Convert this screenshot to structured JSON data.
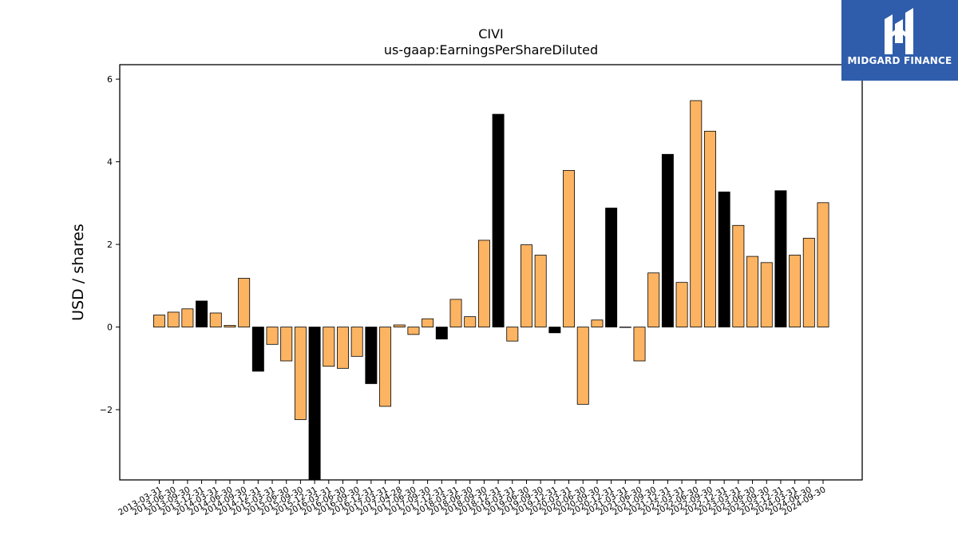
{
  "chart_data": {
    "type": "bar",
    "title": "CIVI",
    "subtitle": "us-gaap:EarningsPerShareDiluted",
    "xlabel": "",
    "ylabel": "USD / shares",
    "ylim": [
      -3.7,
      6.35
    ],
    "yticks": [
      -2,
      0,
      2,
      4,
      6
    ],
    "ytick_labels": [
      "−2",
      "0",
      "2",
      "4",
      "6"
    ],
    "grid": false,
    "legend": "none",
    "colors": {
      "default": "#fdb462",
      "annual": "#000000",
      "edge": "#000000"
    },
    "categories": [
      "2013-03-31",
      "2013-06-30",
      "2013-09-30",
      "2013-12-31",
      "2014-03-31",
      "2014-06-30",
      "2014-09-30",
      "2014-12-31",
      "2015-03-31",
      "2015-06-30",
      "2015-09-30",
      "2015-12-31",
      "2016-03-31",
      "2016-06-30",
      "2016-09-30",
      "2016-12-31",
      "2017-03-31",
      "2017-04-28",
      "2017-06-30",
      "2017-09-30",
      "2017-12-31",
      "2018-03-31",
      "2018-06-30",
      "2018-09-30",
      "2018-12-31",
      "2019-03-31",
      "2019-06-30",
      "2019-09-30",
      "2019-12-31",
      "2020-03-31",
      "2020-06-30",
      "2020-09-30",
      "2020-12-31",
      "2021-03-31",
      "2021-06-30",
      "2021-09-30",
      "2021-12-31",
      "2022-03-31",
      "2022-06-30",
      "2022-09-30",
      "2022-12-31",
      "2023-03-31",
      "2023-06-30",
      "2023-09-30",
      "2023-12-31",
      "2024-03-31",
      "2024-06-30",
      "2024-09-30"
    ],
    "values": [
      0.29,
      0.36,
      0.44,
      0.63,
      0.34,
      0.04,
      1.18,
      -1.07,
      -0.42,
      -0.82,
      -2.24,
      -3.72,
      -0.95,
      -1.0,
      -0.71,
      -1.37,
      -1.92,
      0.05,
      -0.18,
      0.2,
      -0.29,
      0.67,
      0.25,
      2.1,
      5.15,
      -0.34,
      1.99,
      1.74,
      -0.14,
      3.79,
      -1.87,
      0.17,
      2.88,
      -0.01,
      -0.82,
      1.31,
      4.18,
      1.08,
      5.48,
      4.74,
      3.27,
      2.46,
      1.71,
      1.56,
      3.3,
      1.74,
      2.15,
      3.01
    ],
    "annual": [
      false,
      false,
      false,
      true,
      false,
      false,
      false,
      true,
      false,
      false,
      false,
      true,
      false,
      false,
      false,
      true,
      false,
      false,
      false,
      false,
      true,
      false,
      false,
      false,
      true,
      false,
      false,
      false,
      true,
      false,
      false,
      false,
      true,
      false,
      false,
      false,
      true,
      false,
      false,
      false,
      true,
      false,
      false,
      false,
      true,
      false,
      false,
      false
    ]
  },
  "logo": {
    "text": "MIDGARD FINANCE",
    "color": "#2f5dab"
  }
}
